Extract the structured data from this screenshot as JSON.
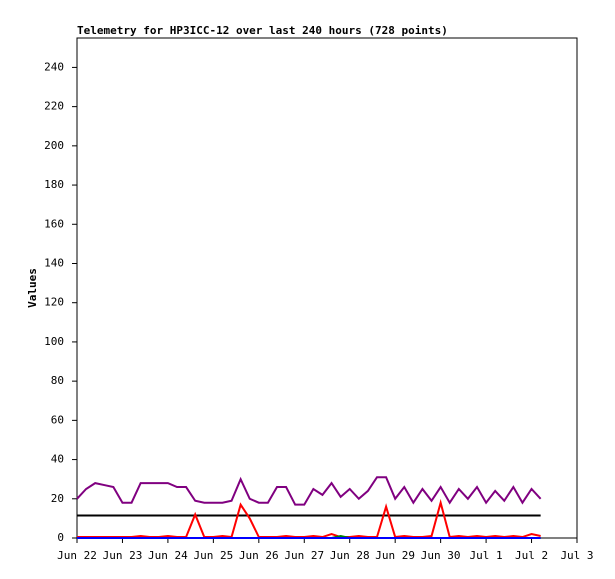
{
  "chart_data": {
    "type": "line",
    "title": "Telemetry for HP3ICC-12 over last 240 hours (728 points)",
    "y_label": "Values",
    "xlim": [
      0,
      11
    ],
    "ylim": [
      0,
      255
    ],
    "xticks": [
      {
        "value": 0,
        "label": "Jun 22"
      },
      {
        "value": 1,
        "label": "Jun 23"
      },
      {
        "value": 2,
        "label": "Jun 24"
      },
      {
        "value": 3,
        "label": "Jun 25"
      },
      {
        "value": 4,
        "label": "Jun 26"
      },
      {
        "value": 5,
        "label": "Jun 27"
      },
      {
        "value": 6,
        "label": "Jun 28"
      },
      {
        "value": 7,
        "label": "Jun 29"
      },
      {
        "value": 8,
        "label": "Jun 30"
      },
      {
        "value": 9,
        "label": "Jul 1"
      },
      {
        "value": 10,
        "label": "Jul 2"
      },
      {
        "value": 11,
        "label": "Jul 3"
      }
    ],
    "yticks": [
      0,
      20,
      40,
      60,
      80,
      100,
      120,
      140,
      160,
      180,
      200,
      220,
      240
    ],
    "x": [
      0,
      0.2,
      0.4,
      0.6,
      0.8,
      1.0,
      1.2,
      1.4,
      1.6,
      1.8,
      2.0,
      2.2,
      2.4,
      2.6,
      2.8,
      3.0,
      3.2,
      3.4,
      3.6,
      3.8,
      4.0,
      4.2,
      4.4,
      4.6,
      4.8,
      5.0,
      5.2,
      5.4,
      5.6,
      5.8,
      6.0,
      6.2,
      6.4,
      6.6,
      6.8,
      7.0,
      7.2,
      7.4,
      7.6,
      7.8,
      8.0,
      8.2,
      8.4,
      8.6,
      8.8,
      9.0,
      9.2,
      9.4,
      9.6,
      9.8,
      10.0,
      10.2
    ],
    "series": [
      {
        "color": "#800080",
        "values": [
          20,
          25,
          28,
          27,
          26,
          18,
          18,
          28,
          28,
          28,
          28,
          26,
          26,
          19,
          18,
          18,
          18,
          19,
          30,
          20,
          18,
          18,
          26,
          26,
          17,
          17,
          25,
          22,
          28,
          21,
          25,
          20,
          24,
          31,
          31,
          20,
          26,
          18,
          25,
          19,
          26,
          18,
          25,
          20,
          26,
          18,
          24,
          19,
          26,
          18,
          25,
          20
        ]
      },
      {
        "color": "#000000",
        "values": [
          11.5,
          11.5,
          11.5,
          11.5,
          11.5,
          11.5,
          11.5,
          11.5,
          11.5,
          11.5,
          11.5,
          11.5,
          11.5,
          11.5,
          11.5,
          11.5,
          11.5,
          11.5,
          11.5,
          11.5,
          11.5,
          11.5,
          11.5,
          11.5,
          11.5,
          11.5,
          11.5,
          11.5,
          11.5,
          11.5,
          11.5,
          11.5,
          11.5,
          11.5,
          11.5,
          11.5,
          11.5,
          11.5,
          11.5,
          11.5,
          11.5,
          11.5,
          11.5,
          11.5,
          11.5,
          11.5,
          11.5,
          11.5,
          11.5,
          11.5,
          11.5,
          11.5
        ]
      },
      {
        "color": "#ff0000",
        "values": [
          0.5,
          0.5,
          0.5,
          0.5,
          0.5,
          0.5,
          0.5,
          1,
          0.5,
          0.5,
          1,
          0.5,
          0.5,
          12,
          0.5,
          0.5,
          1,
          0.5,
          17,
          10,
          0.5,
          0.5,
          0.5,
          1,
          0.5,
          0.5,
          1,
          0.5,
          2,
          0.5,
          0.5,
          1,
          0.5,
          0.5,
          16,
          0.5,
          1,
          0.5,
          0.5,
          1,
          18,
          0.5,
          1,
          0.5,
          1,
          0.5,
          1,
          0.5,
          1,
          0.5,
          2,
          1
        ]
      },
      {
        "color": "#008000",
        "values": [
          0,
          0,
          0,
          0,
          0,
          0,
          0,
          0,
          0,
          0,
          0,
          0,
          0,
          0,
          0,
          0,
          0,
          0,
          0,
          0,
          0,
          0,
          0,
          0,
          0,
          0,
          0,
          0,
          0,
          1,
          0,
          0,
          0,
          0,
          0,
          0,
          0,
          0,
          0,
          0,
          0,
          0,
          0,
          0,
          0,
          0,
          0,
          0,
          0,
          0,
          0,
          0
        ]
      },
      {
        "color": "#0000ff",
        "values": [
          0,
          0,
          0,
          0,
          0,
          0,
          0,
          0,
          0,
          0,
          0,
          0,
          0,
          0,
          0,
          0,
          0,
          0,
          0,
          0,
          0,
          0,
          0,
          0,
          0,
          0,
          0,
          0,
          0,
          0,
          0,
          0,
          0,
          0,
          0,
          0,
          0,
          0,
          0,
          0,
          0,
          0,
          0,
          0,
          0,
          0,
          0,
          0,
          0,
          0,
          0,
          0
        ]
      }
    ]
  }
}
